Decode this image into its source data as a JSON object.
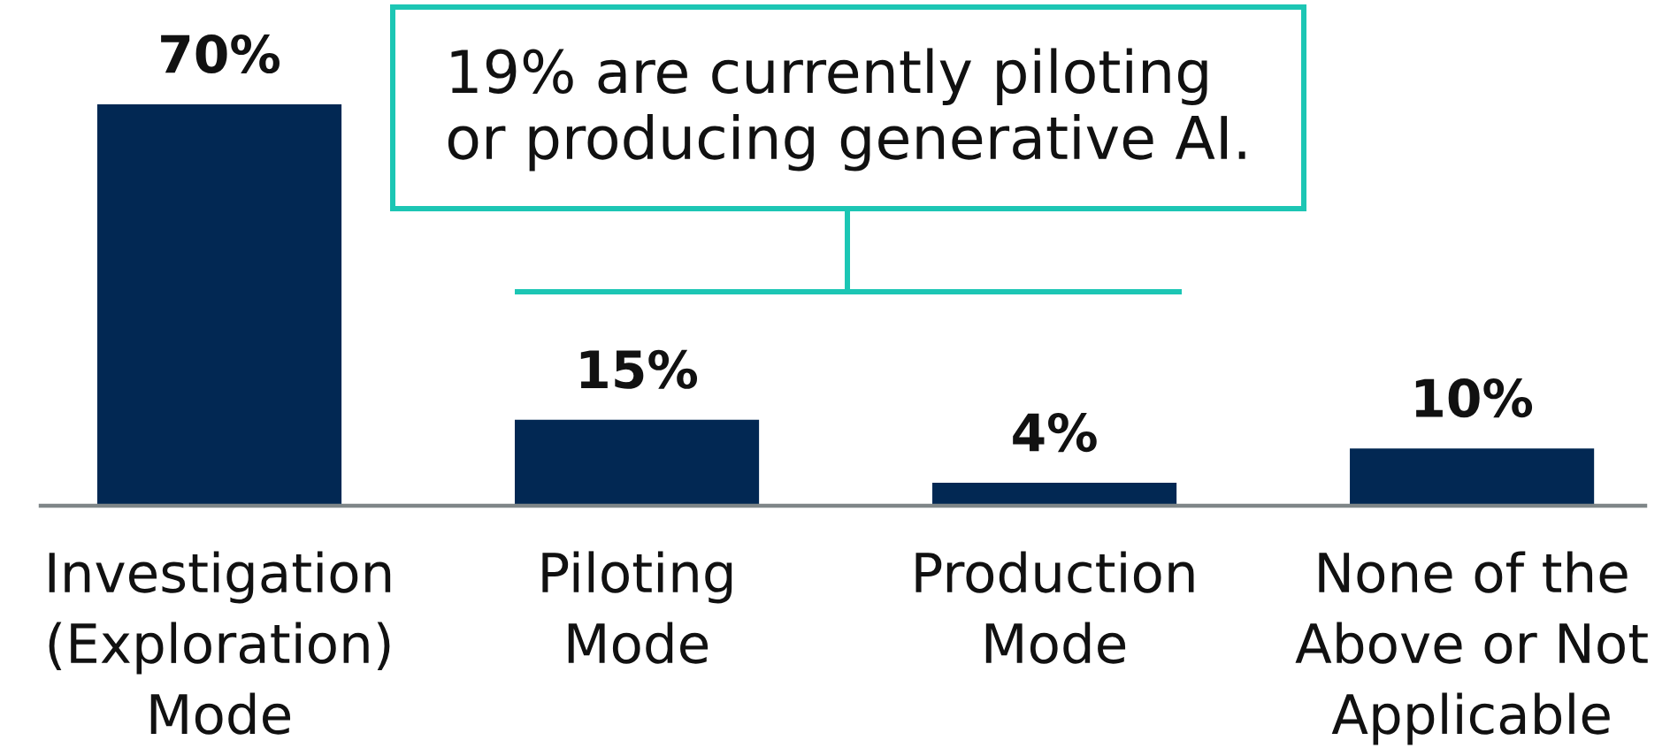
{
  "chart_data": {
    "type": "bar",
    "categories": [
      "Investigation\n(Exploration)\nMode",
      "Piloting\nMode",
      "Production\nMode",
      "None of the\nAbove or Not\nApplicable"
    ],
    "values": [
      70,
      15,
      4,
      10
    ],
    "color": "#022853",
    "value_labels": [
      "70%",
      "15%",
      "4%",
      "10%"
    ],
    "tick_labels": "x",
    "annotations": [
      "19% are currently piloting\nor producing generative AI."
    ]
  }
}
